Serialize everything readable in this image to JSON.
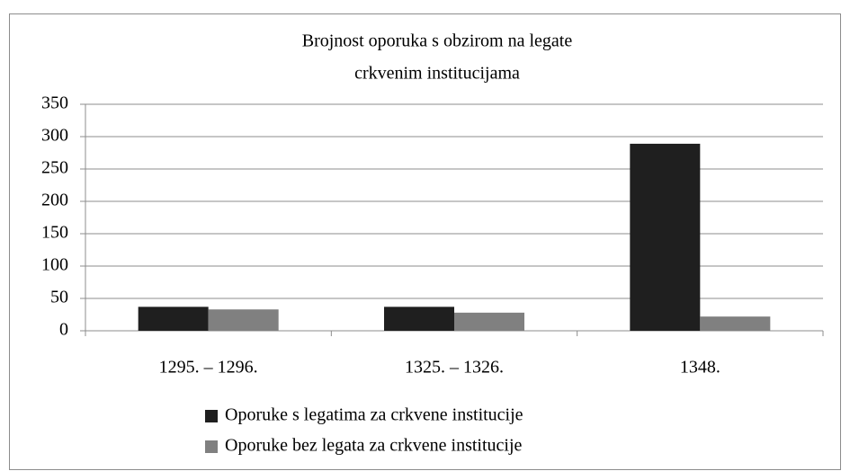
{
  "chart_data": {
    "type": "bar",
    "title": [
      "Brojnost oporuka s obzirom na legate",
      "crkvenim institucijama"
    ],
    "categories": [
      "1295. – 1296.",
      "1325. – 1326.",
      "1348."
    ],
    "series": [
      {
        "name": "Oporuke s legatima za crkvene institucije",
        "color": "#1f1f1f",
        "values": [
          37,
          37,
          289
        ]
      },
      {
        "name": "Oporuke bez legata za crkvene institucije",
        "color": "#808080",
        "values": [
          33,
          28,
          22
        ]
      }
    ],
    "ylim": [
      0,
      350
    ],
    "yticks": [
      0,
      50,
      100,
      150,
      200,
      250,
      300,
      350
    ],
    "grid": true
  }
}
